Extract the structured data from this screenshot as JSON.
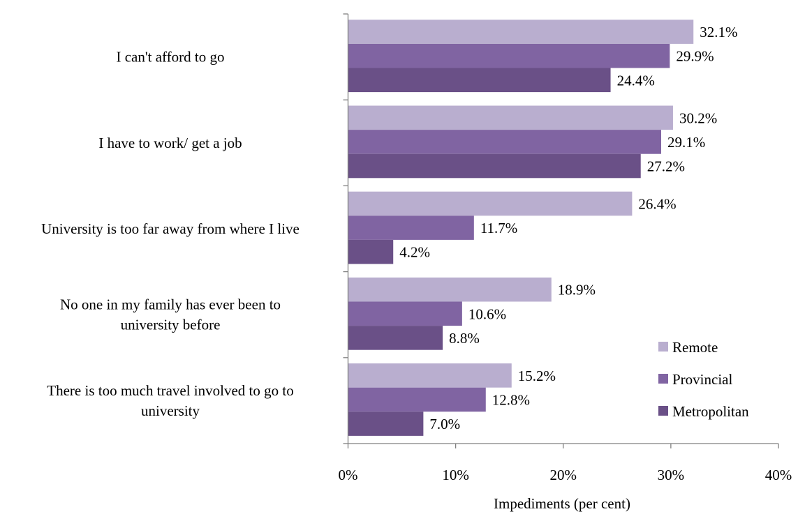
{
  "chart_data": {
    "type": "bar",
    "orientation": "horizontal",
    "categories": [
      [
        "I can't afford to go"
      ],
      [
        "I have to work/ get a job"
      ],
      [
        "University is too far away from where I live"
      ],
      [
        "No one in my family has ever been to",
        "university before"
      ],
      [
        "There is too much travel involved to go to",
        "university"
      ]
    ],
    "series": [
      {
        "name": "Remote",
        "values": [
          32.1,
          30.2,
          26.4,
          18.9,
          15.2
        ],
        "color": "#b9aecf"
      },
      {
        "name": "Provincial",
        "values": [
          29.9,
          29.1,
          11.7,
          10.6,
          12.8
        ],
        "color": "#8064a2"
      },
      {
        "name": "Metropolitan",
        "values": [
          24.4,
          27.2,
          4.2,
          8.8,
          7.0
        ],
        "color": "#6a5087"
      }
    ],
    "data_labels": [
      [
        "32.1%",
        "30.2%",
        "26.4%",
        "18.9%",
        "15.2%"
      ],
      [
        "29.9%",
        "29.1%",
        "11.7%",
        "10.6%",
        "12.8%"
      ],
      [
        "24.4%",
        "27.2%",
        "4.2%",
        "8.8%",
        "7.0%"
      ]
    ],
    "xticks": [
      0,
      10,
      20,
      30,
      40
    ],
    "xtick_labels": [
      "0%",
      "10%",
      "20%",
      "30%",
      "40%"
    ],
    "xlim": [
      0,
      40
    ],
    "xlabel": "Impediments (per cent)",
    "ylabel": "",
    "title": "",
    "grid": false,
    "legend": {
      "position": "bottom-right"
    }
  }
}
